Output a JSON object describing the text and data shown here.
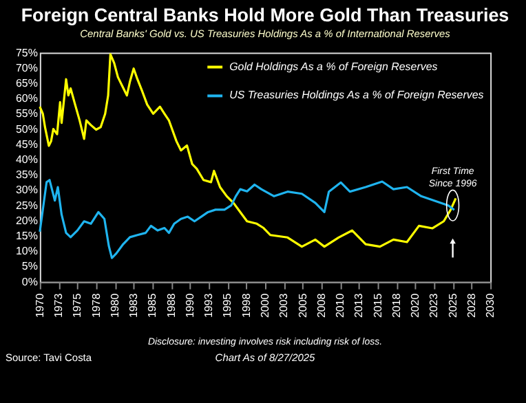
{
  "chart_data": {
    "type": "line",
    "title": "Foreign Central Banks Hold More Gold Than Treasuries",
    "subtitle": "Central Banks' Gold vs. US Treasuries Holdings As a % of International Reserves",
    "series": [
      {
        "name": "Gold Holdings As a % of Foreign Reserves",
        "color": "#ffff00",
        "x": [
          1970,
          1970.4,
          1970.7,
          1971.2,
          1971.5,
          1971.8,
          1972.3,
          1972.7,
          1972.9,
          1973.5,
          1973.8,
          1974.1,
          1974.7,
          1975.3,
          1975.9,
          1976.2,
          1976.8,
          1977.5,
          1978.1,
          1978.7,
          1979.1,
          1979.4,
          1979.9,
          1980.4,
          1981,
          1981.6,
          1982,
          1982.5,
          1983,
          1983.6,
          1984.3,
          1985.1,
          1986,
          1986.6,
          1987.2,
          1988.2,
          1988.8,
          1989.6,
          1990.3,
          1990.9,
          1991.8,
          1992.8,
          1993.2,
          1994,
          1994.9,
          1995.8,
          1996.7,
          1997.6,
          1998.9,
          1999.8,
          2000.7,
          2003,
          2004.9,
          2006.7,
          2007.9,
          2009.8,
          2011.6,
          2013.4,
          2015.3,
          2017.1,
          2018.9,
          2020.5,
          2022.3,
          2023.8,
          2024.7,
          2025.4
        ],
        "values": [
          57.3,
          55,
          50.5,
          44.5,
          46,
          50,
          48.3,
          58.8,
          52,
          66.3,
          61,
          63.3,
          58,
          52.8,
          46.8,
          52.8,
          51.3,
          49.8,
          50.6,
          55,
          61,
          74.5,
          71.6,
          67,
          64,
          61,
          65.5,
          69.8,
          66.3,
          62.6,
          58,
          55,
          57.3,
          55,
          52.8,
          46,
          43,
          44.6,
          38.5,
          37,
          33.3,
          32.6,
          36.3,
          31,
          28,
          25.8,
          22.8,
          19.8,
          19,
          17.6,
          15.3,
          14.5,
          11.5,
          13.8,
          11.5,
          14.5,
          16.8,
          12.3,
          11.5,
          13.8,
          13,
          18.3,
          17.5,
          19.8,
          23.5,
          27.3
        ]
      },
      {
        "name": "US Treasuries Holdings As a % of Foreign Reserves",
        "color": "#1fb4ef",
        "x": [
          1970,
          1970.4,
          1970.9,
          1971.3,
          1972,
          1972.4,
          1972.9,
          1973.5,
          1974.1,
          1975,
          1975.9,
          1976.8,
          1977.8,
          1978.6,
          1979.2,
          1979.6,
          1980.2,
          1981.1,
          1982,
          1983,
          1984.1,
          1984.8,
          1985.7,
          1986.6,
          1987.2,
          1987.9,
          1988.8,
          1989.7,
          1990.6,
          1991.5,
          1992.4,
          1993.4,
          1994.6,
          1995.5,
          1996.1,
          1996.7,
          1997.6,
          1998.6,
          1999.5,
          2001.2,
          2003,
          2004.9,
          2006.7,
          2007.9,
          2008.5,
          2010.1,
          2011.3,
          2013.4,
          2015.6,
          2017.1,
          2018.9,
          2020.8,
          2022.6,
          2024.4,
          2025.2
        ],
        "values": [
          16.4,
          23.6,
          32.6,
          33.3,
          26.6,
          31,
          22,
          16,
          14.6,
          16.8,
          19.8,
          19,
          22.8,
          20.6,
          11.6,
          7.8,
          9.3,
          12.3,
          14.6,
          15.3,
          16,
          18.3,
          16.8,
          17.6,
          16,
          19,
          20.6,
          21.3,
          19.8,
          21.3,
          22.8,
          23.6,
          23.6,
          25,
          28,
          30.3,
          29.6,
          31.8,
          30.3,
          28,
          29.5,
          28.8,
          25.8,
          22.8,
          29.5,
          32.5,
          29.5,
          31,
          32.8,
          30.3,
          31,
          28,
          26.5,
          25,
          23.5
        ]
      }
    ],
    "xlim": [
      1970,
      2030
    ],
    "xticks": [
      1970,
      {
        "value": 1972.5,
        "label": "1973"
      },
      1975,
      {
        "value": 1977.5,
        "label": "1978"
      },
      1980,
      {
        "value": 1982.5,
        "label": "1983"
      },
      1985,
      {
        "value": 1987.5,
        "label": "1988"
      },
      1990,
      {
        "value": 1992.5,
        "label": "1993"
      },
      1995,
      {
        "value": 1997.5,
        "label": "1998"
      },
      2000,
      {
        "value": 2002.5,
        "label": "2003"
      },
      2005,
      {
        "value": 2007.5,
        "label": "2008"
      },
      2010,
      {
        "value": 2012.5,
        "label": "2013"
      },
      2015,
      {
        "value": 2017.5,
        "label": "2018"
      },
      2020,
      {
        "value": 2022.5,
        "label": "2023"
      },
      2025,
      {
        "value": 2027.5,
        "label": "2028"
      },
      2030
    ],
    "ylim": [
      0,
      75
    ],
    "yticks": [
      {
        "value": 0,
        "label": "0%"
      },
      {
        "value": 5,
        "label": "5%"
      },
      {
        "value": 10,
        "label": "10%"
      },
      {
        "value": 15,
        "label": "15%"
      },
      {
        "value": 20,
        "label": "20%"
      },
      {
        "value": 25,
        "label": "25%"
      },
      {
        "value": 30,
        "label": "30%"
      },
      {
        "value": 35,
        "label": "35%"
      },
      {
        "value": 40,
        "label": "40%"
      },
      {
        "value": 45,
        "label": "45%"
      },
      {
        "value": 50,
        "label": "50%"
      },
      {
        "value": 55,
        "label": "55%"
      },
      {
        "value": 60,
        "label": "60%"
      },
      {
        "value": 65,
        "label": "65%"
      },
      {
        "value": 70,
        "label": "70%"
      },
      {
        "value": 75,
        "label": "75%"
      }
    ],
    "grid": false,
    "legend": "top right",
    "marker": "none",
    "line_style": "solid",
    "annotations": [
      {
        "text": "First Time Since 1996",
        "x": 2025,
        "y": 25
      },
      "Disclosure: investing involves risk including risk of loss.",
      "Source: Tavi Costa",
      "Chart As of 8/27/2025"
    ]
  }
}
